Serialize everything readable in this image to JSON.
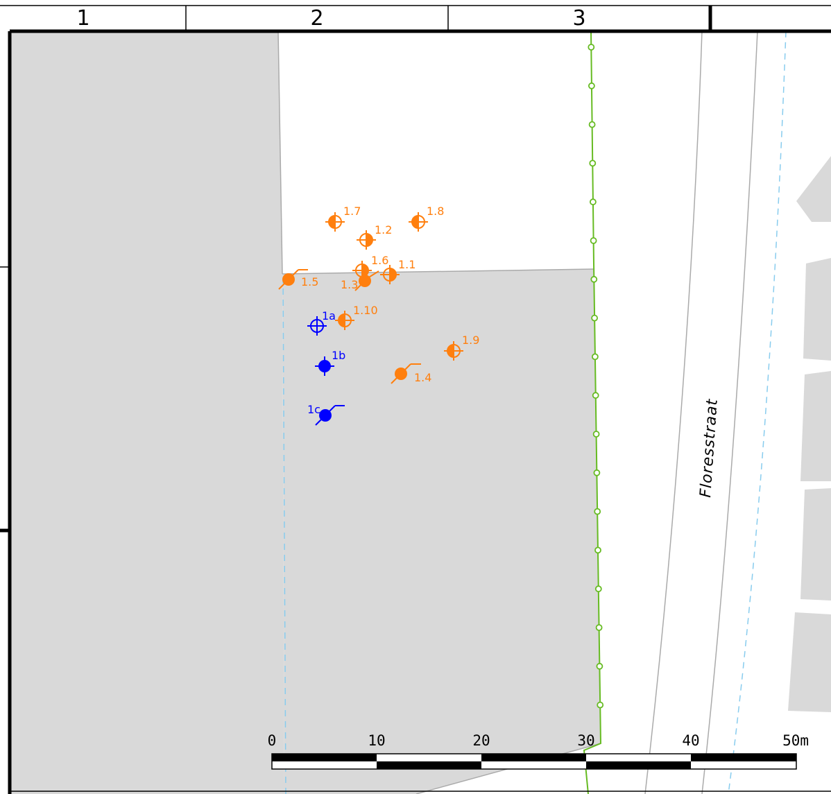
{
  "grid": {
    "columns": [
      "1",
      "2",
      "3"
    ]
  },
  "street_name": "Floresstraat",
  "colors": {
    "parcel_fill": "#d9d9d9",
    "orange_points": "#ff7f0e",
    "blue_points": "#0000ff",
    "fence_line": "#66bb22",
    "cable_dashed": "#88ccee",
    "road_line": "#aaaaaa"
  },
  "scale_bar": {
    "ticks": [
      "0",
      "10",
      "20",
      "30",
      "40",
      "50m"
    ]
  },
  "points": [
    {
      "id": "1.1",
      "color": "orange",
      "symbol": "half-crosshair"
    },
    {
      "id": "1.2",
      "color": "orange",
      "symbol": "half-crosshair"
    },
    {
      "id": "1.3",
      "color": "orange",
      "symbol": "filled-flag"
    },
    {
      "id": "1.4",
      "color": "orange",
      "symbol": "filled-flag"
    },
    {
      "id": "1.5",
      "color": "orange",
      "symbol": "filled-flag"
    },
    {
      "id": "1.6",
      "color": "orange",
      "symbol": "half-crosshair"
    },
    {
      "id": "1.7",
      "color": "orange",
      "symbol": "half-crosshair"
    },
    {
      "id": "1.8",
      "color": "orange",
      "symbol": "half-crosshair"
    },
    {
      "id": "1.9",
      "color": "orange",
      "symbol": "half-crosshair"
    },
    {
      "id": "1.10",
      "color": "orange",
      "symbol": "half-crosshair"
    },
    {
      "id": "1a",
      "color": "blue",
      "symbol": "open-crosshair"
    },
    {
      "id": "1b",
      "color": "blue",
      "symbol": "filled-crosshair"
    },
    {
      "id": "1c",
      "color": "blue",
      "symbol": "filled-flag"
    }
  ]
}
